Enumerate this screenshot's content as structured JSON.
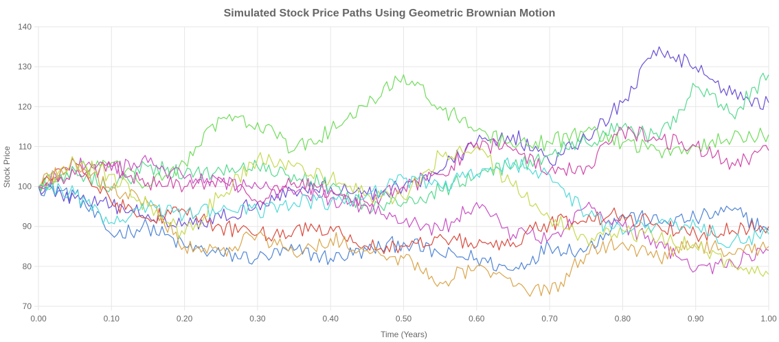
{
  "chart_data": {
    "type": "line",
    "title": "Simulated Stock Price Paths Using Geometric Brownian Motion",
    "xlabel": "Time (Years)",
    "ylabel": "Stock Price",
    "xlim": [
      0,
      1
    ],
    "ylim": [
      70,
      140
    ],
    "x_ticks": [
      "0.00",
      "0.10",
      "0.20",
      "0.30",
      "0.40",
      "0.50",
      "0.60",
      "0.70",
      "0.80",
      "0.90",
      "1.00"
    ],
    "y_ticks": [
      "70",
      "80",
      "90",
      "100",
      "110",
      "120",
      "130",
      "140"
    ],
    "grid": true,
    "legend": "none",
    "x": [
      0.0,
      0.05,
      0.1,
      0.15,
      0.2,
      0.25,
      0.3,
      0.35,
      0.4,
      0.45,
      0.5,
      0.55,
      0.6,
      0.65,
      0.7,
      0.75,
      0.8,
      0.85,
      0.9,
      0.95,
      1.0
    ],
    "series": [
      {
        "color": "#4f84d6",
        "values": [
          100,
          98,
          88,
          90,
          85,
          83,
          82,
          84,
          82,
          84,
          86,
          83,
          82,
          79,
          85,
          84,
          93,
          91,
          92,
          94,
          89
        ]
      },
      {
        "color": "#6a4fd4",
        "values": [
          100,
          97,
          95,
          93,
          91,
          92,
          96,
          99,
          100,
          98,
          100,
          104,
          111,
          113,
          106,
          112,
          121,
          135,
          130,
          123,
          121
        ]
      },
      {
        "color": "#6fdc5a",
        "values": [
          100,
          104,
          106,
          100,
          106,
          117,
          116,
          109,
          114,
          120,
          128,
          120,
          114,
          110,
          111,
          114,
          111,
          109,
          110,
          112,
          113
        ]
      },
      {
        "color": "#54d98e",
        "values": [
          100,
          104,
          100,
          105,
          103,
          104,
          105,
          103,
          100,
          95,
          96,
          99,
          103,
          105,
          108,
          111,
          115,
          112,
          125,
          118,
          128
        ]
      },
      {
        "color": "#c84fc4",
        "values": [
          100,
          106,
          104,
          106,
          102,
          101,
          100,
          98,
          97,
          95,
          91,
          89,
          96,
          88,
          87,
          95,
          90,
          86,
          79,
          81,
          84
        ]
      },
      {
        "color": "#d048a8",
        "values": [
          100,
          103,
          105,
          101,
          100,
          102,
          96,
          101,
          99,
          96,
          100,
          103,
          111,
          109,
          104,
          105,
          114,
          112,
          110,
          106,
          109
        ]
      },
      {
        "color": "#d94a3d",
        "values": [
          100,
          106,
          96,
          92,
          94,
          90,
          88,
          89,
          90,
          85,
          85,
          88,
          85,
          86,
          91,
          91,
          93,
          90,
          88,
          89,
          90
        ]
      },
      {
        "color": "#d9a54a",
        "values": [
          100,
          106,
          99,
          96,
          85,
          84,
          88,
          83,
          87,
          84,
          82,
          76,
          80,
          75,
          73,
          83,
          86,
          82,
          86,
          83,
          85
        ]
      },
      {
        "color": "#c6d950",
        "values": [
          100,
          106,
          103,
          95,
          88,
          98,
          107,
          105,
          102,
          98,
          97,
          108,
          110,
          100,
          92,
          87,
          89,
          87,
          85,
          80,
          78
        ]
      },
      {
        "color": "#4fd9d9",
        "values": [
          100,
          98,
          91,
          95,
          93,
          94,
          94,
          96,
          96,
          98,
          102,
          100,
          103,
          106,
          103,
          93,
          88,
          91,
          90,
          86,
          88
        ]
      }
    ]
  }
}
